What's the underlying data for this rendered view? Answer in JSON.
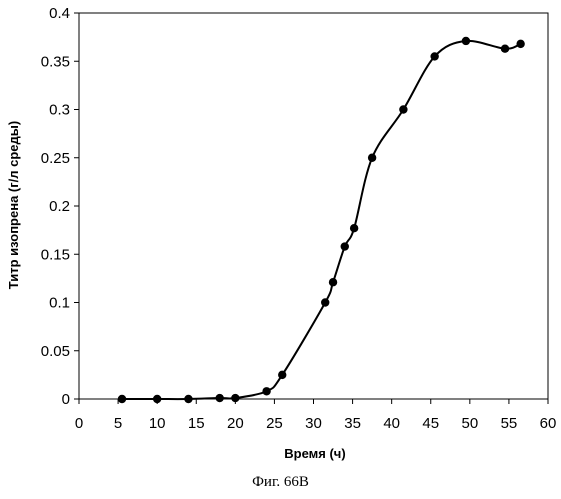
{
  "figure": {
    "caption": "Фиг. 66В"
  },
  "chart_data": {
    "type": "line",
    "title": "",
    "xlabel": "Время (ч)",
    "ylabel": "Титр изопрена (г/л среды)",
    "xlim": [
      0,
      60
    ],
    "ylim": [
      0,
      0.4
    ],
    "xticks": [
      "0",
      "5",
      "10",
      "15",
      "20",
      "25",
      "30",
      "35",
      "40",
      "45",
      "50",
      "55",
      "60"
    ],
    "yticks": [
      "0",
      "0.05",
      "0.1",
      "0.15",
      "0.2",
      "0.25",
      "0.3",
      "0.35",
      "0.4"
    ],
    "grid": false,
    "legend": "none",
    "smooth": true,
    "color": "#000000",
    "series": [
      {
        "x": [
          5.5,
          10,
          14,
          18,
          20,
          24,
          26,
          31.5,
          32.5,
          34,
          35.2,
          37.5,
          41.5,
          45.5,
          49.5,
          54.5,
          56.5
        ],
        "y": [
          0.0,
          0.0,
          0.0,
          0.001,
          0.001,
          0.008,
          0.025,
          0.1,
          0.121,
          0.158,
          0.177,
          0.25,
          0.3,
          0.355,
          0.371,
          0.363,
          0.368
        ]
      }
    ]
  }
}
